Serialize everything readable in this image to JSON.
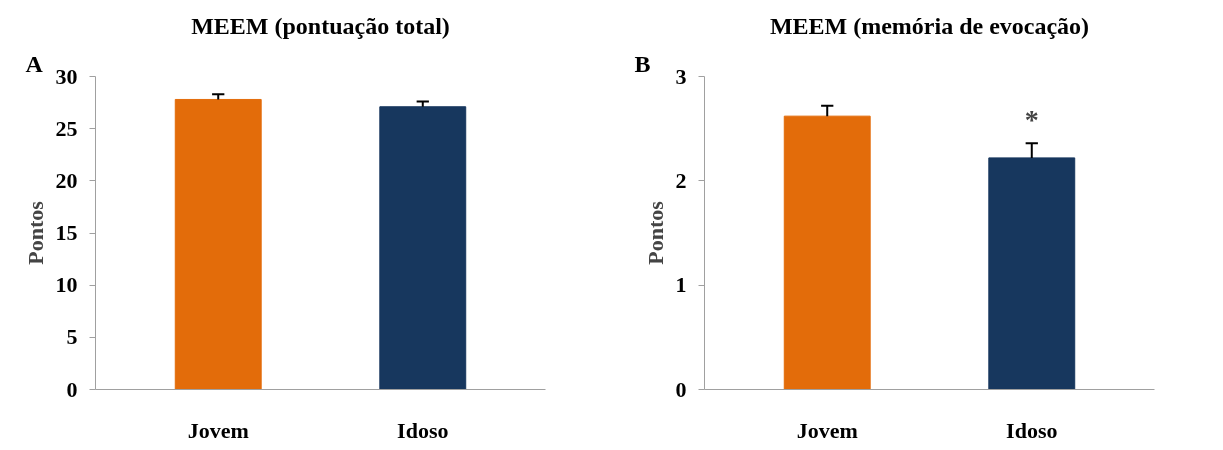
{
  "chart_data": [
    {
      "type": "bar",
      "title": "MEEM (pontuação total)",
      "ylabel": "Pontos",
      "categories": [
        "Jovem",
        "Idoso"
      ],
      "values": [
        27.8,
        27.1
      ],
      "colors": [
        "#e36c0a",
        "#17375e"
      ],
      "errors": [
        [
          27.8,
          28.3
        ],
        [
          27.1,
          27.6
        ]
      ],
      "ylim": [
        0,
        30
      ],
      "yticks": [
        0,
        5,
        10,
        15,
        20,
        25,
        30
      ],
      "grid": false,
      "annotations": [
        "A"
      ]
    },
    {
      "type": "bar",
      "title": "MEEM (memória de evocação)",
      "ylabel": "Pontos",
      "categories": [
        "Jovem",
        "Idoso"
      ],
      "values": [
        2.62,
        2.22
      ],
      "colors": [
        "#e36c0a",
        "#17375e"
      ],
      "errors": [
        [
          2.62,
          2.72
        ],
        [
          2.22,
          2.36
        ]
      ],
      "ylim": [
        0,
        3
      ],
      "yticks": [
        0,
        1,
        2,
        3
      ],
      "grid": false,
      "annotations": [
        "B",
        "*"
      ]
    }
  ]
}
